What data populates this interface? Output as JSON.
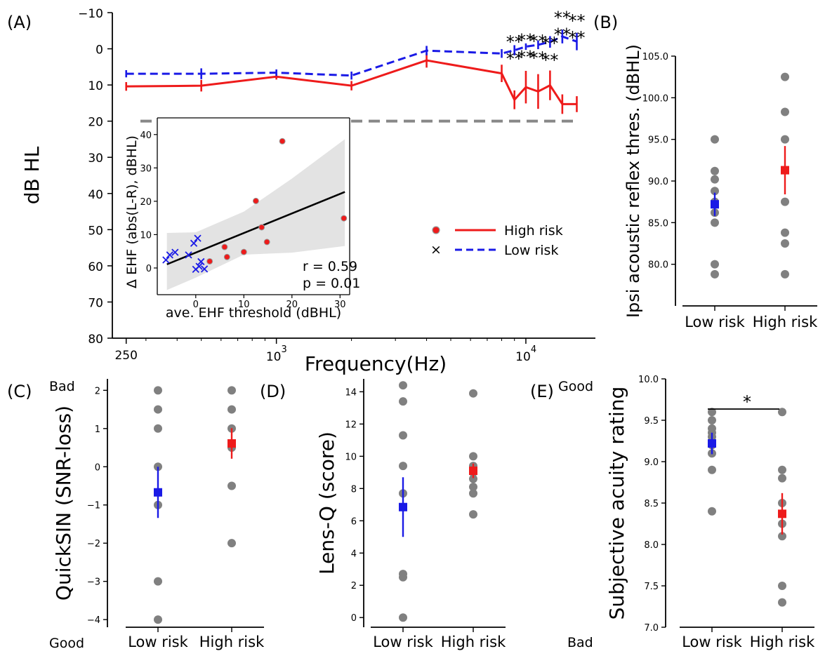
{
  "colors": {
    "high": "#ee1b1b",
    "low": "#1a1ae6",
    "gray": "#808080",
    "ci": "#e3e3e3",
    "threshold": "#888888"
  },
  "chart_data": [
    {
      "panel": "(A)",
      "type": "line",
      "xlabel": "Frequency(Hz)",
      "ylabel": "dB HL",
      "xscale": "log",
      "xlim": [
        220,
        19000
      ],
      "ylim": [
        80,
        -10
      ],
      "ytick_labels": [
        "−10",
        "0",
        "10",
        "20",
        "30",
        "40",
        "50",
        "60",
        "70",
        "80"
      ],
      "xtick_labels": {
        "f250": "250",
        "f1000_base": "10",
        "f1000_exp": "3",
        "f10000_base": "10",
        "f10000_exp": "4"
      },
      "reference_line": {
        "y": 20,
        "style": "dashed"
      },
      "x": [
        250,
        500,
        1000,
        2000,
        4000,
        8000,
        9000,
        10000,
        11200,
        12500,
        14000,
        16000
      ],
      "series": [
        {
          "name": "High risk",
          "style": "solid",
          "values": [
            10.4,
            10.2,
            7.7,
            10.2,
            3.2,
            6.8,
            14.1,
            10.6,
            11.8,
            10.1,
            15.3,
            15.3
          ],
          "err": [
            1.2,
            1.6,
            0.8,
            1.3,
            2.0,
            2.4,
            2.6,
            4.5,
            4.8,
            4.1,
            2.7,
            2.2
          ]
        },
        {
          "name": "Low risk",
          "style": "dashed",
          "values": [
            6.9,
            6.9,
            6.6,
            7.4,
            0.5,
            1.3,
            0.4,
            -0.6,
            -1.1,
            -1.9,
            -3.4,
            -2.0
          ],
          "err": [
            1.0,
            1.5,
            0.9,
            1.1,
            1.3,
            1.2,
            1.4,
            0.9,
            1.2,
            1.6,
            1.9,
            2.4
          ]
        }
      ],
      "significance": {
        "labels": [
          "**",
          "**",
          "**",
          "**",
          "**",
          "**"
        ],
        "x": [
          9000,
          10000,
          11200,
          12500,
          14000,
          16000
        ]
      },
      "legend": {
        "position": "right",
        "entries": [
          "High risk",
          "Low risk"
        ]
      },
      "inset": {
        "type": "scatter",
        "xlabel": "ave. EHF threshold (dBHL)",
        "ylabel": "Δ EHF (abs(L-R), dBHL)",
        "xlim": [
          -8,
          32
        ],
        "ylim": [
          -8,
          45
        ],
        "xticks": [
          0,
          10,
          20,
          30
        ],
        "yticks": [
          0,
          10,
          20,
          30,
          40
        ],
        "annotation_r": "r = 0.59",
        "annotation_p": "p = 0.01",
        "fit": {
          "x": [
            -6,
            31
          ],
          "y": [
            1.1,
            22.8
          ]
        },
        "ci_band": {
          "x": [
            -6,
            0,
            10,
            20,
            31
          ],
          "upper": [
            10.5,
            10.7,
            16.9,
            26.8,
            38.6
          ],
          "lower": [
            -6.6,
            -2.9,
            4.0,
            4.6,
            6.6
          ]
        },
        "high_points": {
          "x": [
            2.9,
            6.0,
            6.5,
            10.0,
            12.5,
            13.7,
            14.8,
            18.0,
            30.8
          ],
          "y": [
            2.0,
            6.3,
            3.3,
            4.8,
            20.1,
            12.2,
            7.8,
            38.0,
            14.9
          ]
        },
        "low_points": {
          "x": [
            -6.2,
            -5.4,
            -4.3,
            -1.5,
            -0.4,
            0.0,
            0.4,
            0.7,
            1.1,
            1.8
          ],
          "y": [
            2.4,
            3.9,
            4.7,
            3.9,
            7.4,
            -0.4,
            8.9,
            0.5,
            1.9,
            -0.3
          ]
        }
      }
    },
    {
      "panel": "(B)",
      "type": "scatter",
      "ylabel": "Ipsi acoustic reflex thres. (dBHL)",
      "categories": [
        "Low risk",
        "High risk"
      ],
      "ylim": [
        75,
        105
      ],
      "yticks": [
        80,
        85,
        90,
        95,
        100,
        105
      ],
      "points": [
        [
          95.0,
          91.2,
          90.2,
          88.8,
          87.5,
          86.2,
          85.0,
          80.0,
          78.8
        ],
        [
          102.5,
          98.3,
          95.0,
          87.5,
          83.8,
          82.5,
          78.8
        ]
      ],
      "mean": [
        87.2,
        91.3
      ],
      "err": [
        1.4,
        2.9
      ]
    },
    {
      "panel": "(C)",
      "type": "scatter",
      "ylabel": "QuickSIN (SNR-loss)",
      "categories": [
        "Low risk",
        "High risk"
      ],
      "ylim": [
        -4.2,
        2.3
      ],
      "yticks": [
        -4,
        -3,
        -2,
        -1,
        0,
        1,
        2
      ],
      "top_note": "Bad",
      "bottom_note": "Good",
      "points": [
        [
          2.0,
          1.5,
          1.0,
          0.0,
          -1.0,
          -3.0,
          -4.0
        ],
        [
          2.0,
          1.5,
          1.0,
          0.5,
          -0.5,
          -2.0
        ]
      ],
      "mean": [
        -0.67,
        0.61
      ],
      "err": [
        0.67,
        0.4
      ]
    },
    {
      "panel": "(D)",
      "type": "scatter",
      "ylabel": "Lens-Q (score)",
      "categories": [
        "Low risk",
        "High risk"
      ],
      "ylim": [
        -0.6,
        14.8
      ],
      "yticks": [
        0,
        2,
        4,
        6,
        8,
        10,
        12,
        14
      ],
      "points": [
        [
          14.4,
          13.4,
          11.3,
          9.4,
          7.7,
          2.7,
          2.5,
          0.0
        ],
        [
          13.9,
          10.0,
          9.4,
          9.0,
          8.6,
          8.1,
          7.7,
          6.4
        ]
      ],
      "mean": [
        6.85,
        9.1
      ],
      "err": [
        1.85,
        0.45
      ]
    },
    {
      "panel": "(E)",
      "type": "scatter",
      "ylabel": "Subjective acuity rating",
      "categories": [
        "Low risk",
        "High risk"
      ],
      "ylim": [
        7.0,
        10.0
      ],
      "yticks": [
        7.0,
        7.5,
        8.0,
        8.5,
        9.0,
        9.5,
        10.0
      ],
      "top_note": "Good",
      "bottom_note": "Bad",
      "significance": "*",
      "points": [
        [
          9.6,
          9.5,
          9.4,
          9.35,
          9.3,
          9.2,
          9.1,
          8.9,
          8.4
        ],
        [
          9.6,
          8.9,
          8.8,
          8.5,
          8.25,
          8.1,
          7.5,
          7.3
        ]
      ],
      "mean": [
        9.22,
        8.37
      ],
      "err": [
        0.13,
        0.25
      ]
    }
  ]
}
